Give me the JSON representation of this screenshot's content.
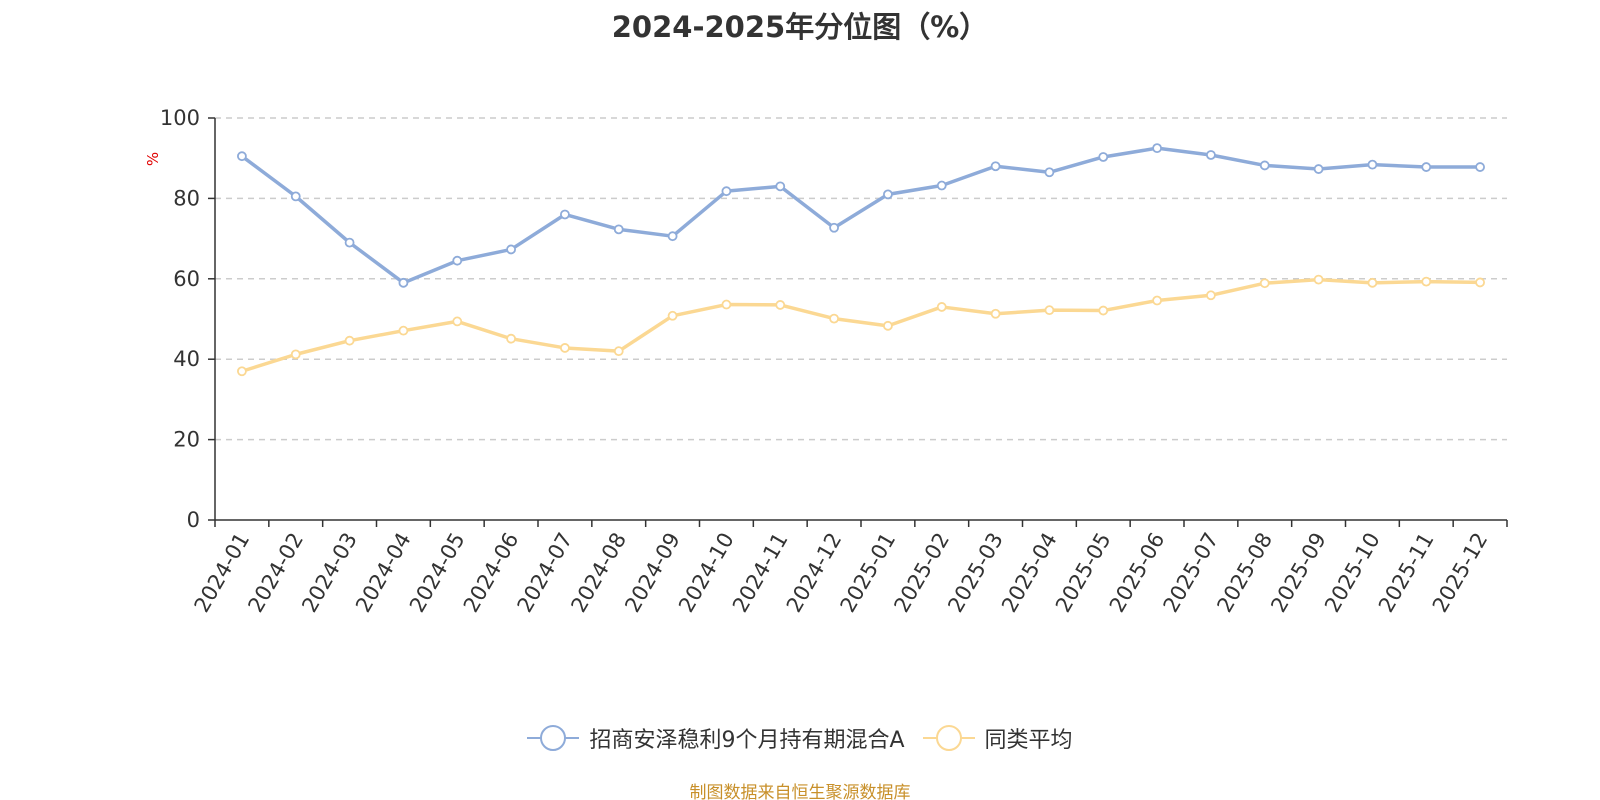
{
  "title": "2024-2025年分位图（%）",
  "source": "制图数据来自恒生聚源数据库",
  "chart_data": {
    "type": "line",
    "title": "2024-2025年分位图（%）",
    "xlabel": "",
    "ylabel": "%",
    "ylim": [
      0,
      100
    ],
    "yticks": [
      0,
      20,
      40,
      60,
      80,
      100
    ],
    "grid": true,
    "legend_position": "bottom",
    "categories": [
      "2024-01",
      "2024-02",
      "2024-03",
      "2024-04",
      "2024-05",
      "2024-06",
      "2024-07",
      "2024-08",
      "2024-09",
      "2024-10",
      "2024-11",
      "2024-12",
      "2025-01",
      "2025-02",
      "2025-03",
      "2025-04",
      "2025-05",
      "2025-06",
      "2025-07",
      "2025-08",
      "2025-09",
      "2025-10",
      "2025-11",
      "2025-12"
    ],
    "series": [
      {
        "name": "招商安泽稳利9个月持有期混合A",
        "color": "#8eabd9",
        "values": [
          90.5,
          80.5,
          69,
          59,
          64.5,
          67.3,
          76,
          72.3,
          70.6,
          81.8,
          83,
          72.7,
          81,
          83.2,
          88,
          86.5,
          90.3,
          92.5,
          90.8,
          88.2,
          87.3,
          88.4,
          87.8,
          87.8
        ]
      },
      {
        "name": "同类平均",
        "color": "#fbd893",
        "values": [
          37,
          41.2,
          44.6,
          47.1,
          49.4,
          45.1,
          42.8,
          42,
          50.8,
          53.6,
          53.5,
          50.1,
          48.3,
          53,
          51.3,
          52.2,
          52.1,
          54.6,
          55.9,
          58.9,
          59.8,
          59,
          59.3,
          59.1
        ]
      }
    ]
  }
}
